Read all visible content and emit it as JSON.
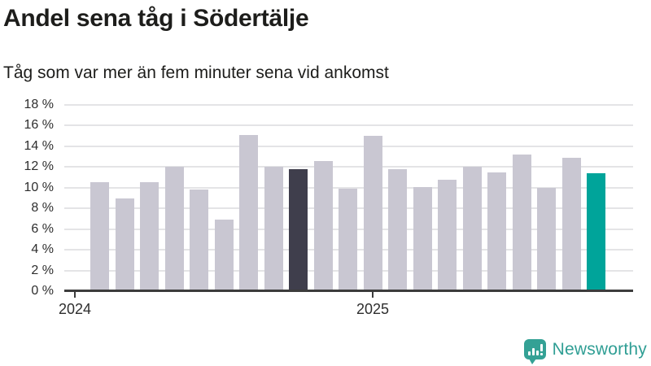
{
  "footer": {
    "brand": "Newsworthy"
  },
  "chart_data": {
    "type": "bar",
    "title": "Andel sena tåg i Södertälje",
    "subtitle": "Tåg som var mer än fem minuter sena vid ankomst",
    "unit": "%",
    "ylim": [
      0,
      18
    ],
    "ytick_step": 2,
    "ytick_suffix": " %",
    "grid": "horizontal",
    "legend_position": "none",
    "x_axis_ticks": [
      {
        "label": "2024",
        "month": "2024-01"
      },
      {
        "label": "2025",
        "month": "2025-01"
      }
    ],
    "categories": [
      "2024-02",
      "2024-03",
      "2024-04",
      "2024-05",
      "2024-06",
      "2024-07",
      "2024-08",
      "2024-09",
      "2024-10",
      "2024-11",
      "2024-12",
      "2025-01",
      "2025-02",
      "2025-03",
      "2025-04",
      "2025-05",
      "2025-06",
      "2025-07",
      "2025-08",
      "2025-09",
      "2025-10"
    ],
    "values": [
      10.5,
      9.0,
      10.5,
      12.0,
      9.8,
      6.9,
      15.1,
      12.0,
      11.8,
      12.6,
      9.9,
      15.0,
      11.8,
      10.1,
      10.8,
      12.0,
      11.5,
      13.2,
      10.0,
      12.9,
      11.4
    ],
    "highlight_compare_month": "2024-10",
    "highlight_latest_month": "2025-10",
    "colors": {
      "bar_default": "#c9c7d2",
      "bar_compare": "#3f3e4c",
      "bar_latest": "#00a49a",
      "axis": "#3c3c3c",
      "grid": "#e4e4e6",
      "brand": "#34a195",
      "brand_text": "#2f9e94",
      "text": "#1d1d1b"
    }
  }
}
